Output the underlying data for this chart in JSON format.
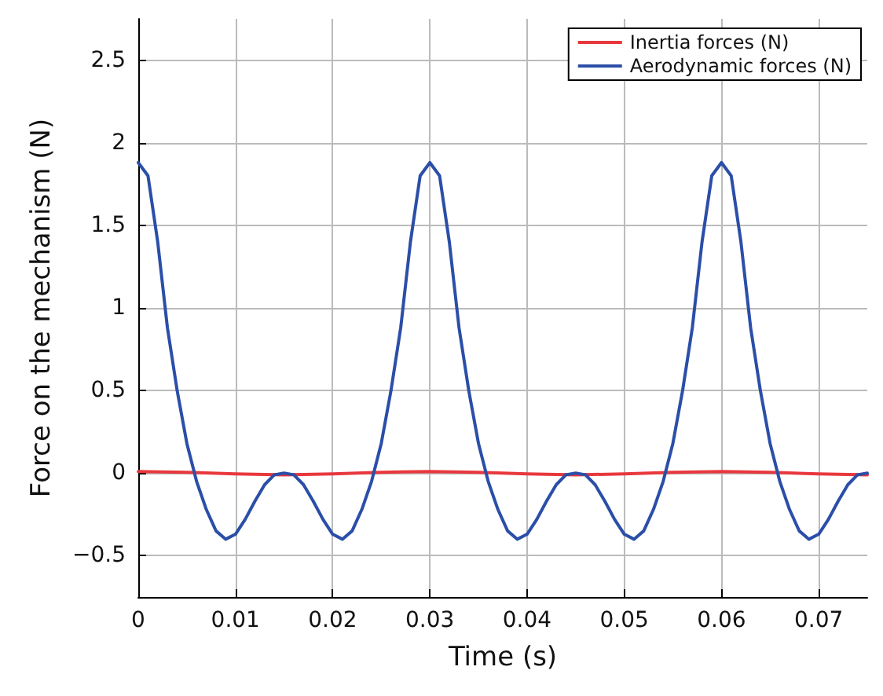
{
  "chart_data": {
    "type": "line",
    "xlabel": "Time (s)",
    "ylabel": "Force on the mechanism (N)",
    "xlim": [
      0,
      0.075
    ],
    "xticks": [
      0,
      0.01,
      0.02,
      0.03,
      0.04,
      0.05,
      0.06,
      0.07
    ],
    "ylim": [
      -0.75,
      2.75
    ],
    "yticks": [
      {
        "value": -0.5,
        "label": "−0.5"
      },
      0,
      0.5,
      1,
      1.5,
      2,
      2.5
    ],
    "grid": true,
    "legend": "top right",
    "marker": "none",
    "line_style": "solid",
    "series": [
      {
        "name": "Inertia forces (N)",
        "color": "#e8383d",
        "x": [
          0,
          0.005,
          0.01,
          0.015,
          0.02,
          0.025,
          0.03,
          0.035,
          0.04,
          0.045,
          0.05,
          0.055,
          0.06,
          0.065,
          0.07,
          0.075
        ],
        "values": [
          0.01,
          0.005,
          -0.005,
          -0.01,
          -0.005,
          0.005,
          0.01,
          0.005,
          -0.005,
          -0.01,
          -0.005,
          0.005,
          0.01,
          0.005,
          -0.005,
          -0.01
        ]
      },
      {
        "name": "Aerodynamic forces (N)",
        "color": "#2b4fa8",
        "x": [
          0,
          0.001,
          0.002,
          0.003,
          0.004,
          0.005,
          0.006,
          0.007,
          0.008,
          0.009,
          0.01,
          0.011,
          0.012,
          0.013,
          0.014,
          0.015,
          0.016,
          0.017,
          0.018,
          0.019,
          0.02,
          0.021,
          0.022,
          0.023,
          0.024,
          0.025,
          0.026,
          0.027,
          0.028,
          0.029,
          0.03,
          0.031,
          0.032,
          0.033,
          0.034,
          0.035,
          0.036,
          0.037,
          0.038,
          0.039,
          0.04,
          0.041,
          0.042,
          0.043,
          0.044,
          0.045,
          0.046,
          0.047,
          0.048,
          0.049,
          0.05,
          0.051,
          0.052,
          0.053,
          0.054,
          0.055,
          0.056,
          0.057,
          0.058,
          0.059,
          0.06,
          0.061,
          0.062,
          0.063,
          0.064,
          0.065,
          0.066,
          0.067,
          0.068,
          0.069,
          0.07,
          0.071,
          0.072,
          0.073,
          0.074,
          0.075
        ],
        "values": [
          1.88,
          1.8,
          1.4,
          0.88,
          0.5,
          0.18,
          -0.05,
          -0.22,
          -0.35,
          -0.4,
          -0.37,
          -0.28,
          -0.17,
          -0.07,
          -0.01,
          0,
          -0.01,
          -0.07,
          -0.17,
          -0.28,
          -0.37,
          -0.4,
          -0.35,
          -0.22,
          -0.05,
          0.18,
          0.5,
          0.88,
          1.4,
          1.8,
          1.88,
          1.8,
          1.4,
          0.88,
          0.5,
          0.18,
          -0.05,
          -0.22,
          -0.35,
          -0.4,
          -0.37,
          -0.28,
          -0.17,
          -0.07,
          -0.01,
          0,
          -0.01,
          -0.07,
          -0.17,
          -0.28,
          -0.37,
          -0.4,
          -0.35,
          -0.22,
          -0.05,
          0.18,
          0.5,
          0.88,
          1.4,
          1.8,
          1.88,
          1.8,
          1.4,
          0.88,
          0.5,
          0.18,
          -0.05,
          -0.22,
          -0.35,
          -0.4,
          -0.37,
          -0.28,
          -0.17,
          -0.07,
          -0.01,
          0
        ]
      }
    ]
  }
}
